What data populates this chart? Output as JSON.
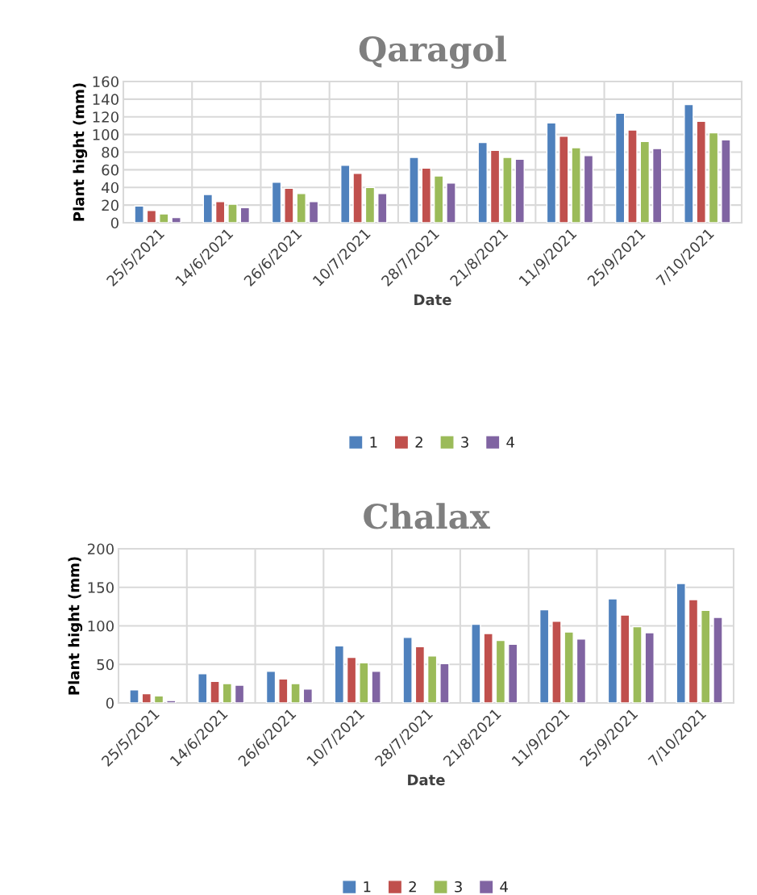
{
  "chart_data": [
    {
      "type": "bar",
      "title": "Qaragol",
      "xlabel": "Date",
      "ylabel": "Plant hight (mm)",
      "categories": [
        "25/5/2021",
        "14/6/2021",
        "26/6/2021",
        "10/7/2021",
        "28/7/2021",
        "21/8/2021",
        "11/9/2021",
        "25/9/2021",
        "7/10/2021"
      ],
      "series": [
        {
          "name": "1",
          "color": "#4f81bd",
          "values": [
            19,
            32,
            46,
            65,
            74,
            91,
            113,
            124,
            134
          ]
        },
        {
          "name": "2",
          "color": "#c0504d",
          "values": [
            14,
            24,
            39,
            56,
            62,
            82,
            98,
            105,
            115
          ]
        },
        {
          "name": "3",
          "color": "#9bbb59",
          "values": [
            10,
            21,
            33,
            40,
            53,
            74,
            85,
            92,
            102
          ]
        },
        {
          "name": "4",
          "color": "#8064a2",
          "values": [
            6,
            17,
            24,
            33,
            45,
            72,
            76,
            84,
            94
          ]
        }
      ],
      "ylim": [
        0,
        160
      ],
      "yticks": [
        0,
        20,
        40,
        60,
        80,
        100,
        120,
        140,
        160
      ],
      "grid": true,
      "legend": "bottom"
    },
    {
      "type": "bar",
      "title": "Chalax",
      "xlabel": "Date",
      "ylabel": "Plant hight (mm)",
      "categories": [
        "25/5/2021",
        "14/6/2021",
        "26/6/2021",
        "10/7/2021",
        "28/7/2021",
        "21/8/2021",
        "11/9/2021",
        "25/9/2021",
        "7/10/2021"
      ],
      "series": [
        {
          "name": "1",
          "color": "#4f81bd",
          "values": [
            17,
            38,
            41,
            74,
            85,
            102,
            121,
            135,
            155
          ]
        },
        {
          "name": "2",
          "color": "#c0504d",
          "values": [
            12,
            28,
            31,
            59,
            73,
            90,
            106,
            114,
            134
          ]
        },
        {
          "name": "3",
          "color": "#9bbb59",
          "values": [
            9,
            25,
            25,
            52,
            61,
            81,
            92,
            99,
            120
          ]
        },
        {
          "name": "4",
          "color": "#8064a2",
          "values": [
            3,
            23,
            18,
            41,
            51,
            76,
            83,
            91,
            111
          ]
        }
      ],
      "ylim": [
        0,
        200
      ],
      "yticks": [
        0,
        50,
        100,
        150,
        200
      ],
      "grid": true,
      "legend": "bottom"
    }
  ]
}
